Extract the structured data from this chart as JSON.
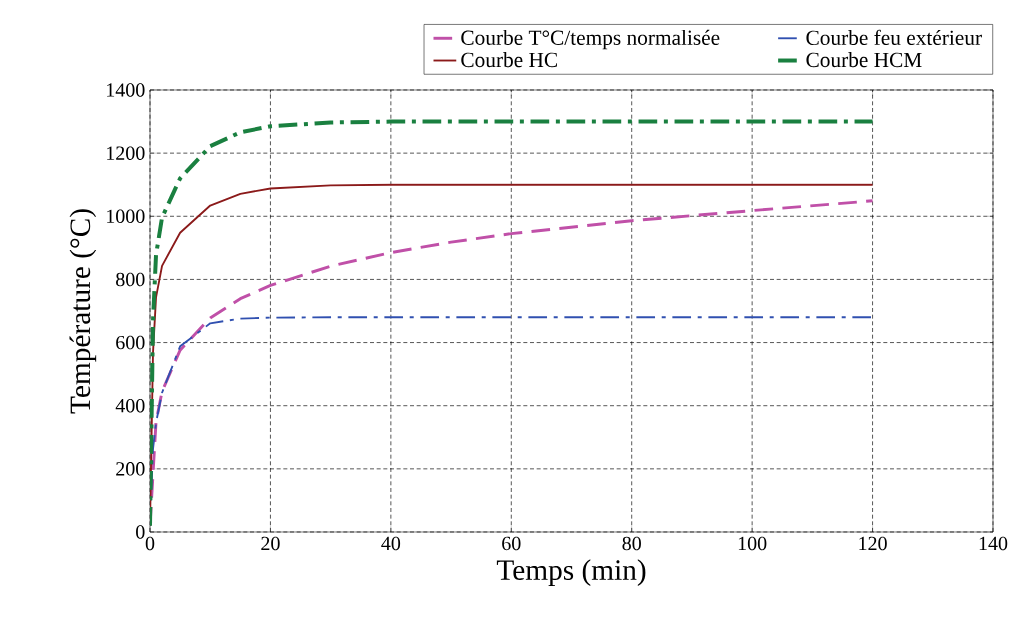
{
  "chart_data": {
    "type": "line",
    "xlabel": "Temps (min)",
    "ylabel": "Température (°C)",
    "xlim": [
      0,
      140
    ],
    "ylim": [
      0,
      1400
    ],
    "xticks": [
      0,
      20,
      40,
      60,
      80,
      100,
      120,
      140
    ],
    "yticks": [
      0,
      200,
      400,
      600,
      800,
      1000,
      1200,
      1400
    ],
    "grid": true,
    "legend": "top",
    "marker": "none",
    "series": [
      {
        "name": "Courbe T°C/temps normalisée",
        "color": "#c050a8",
        "line_style": "dashed",
        "x": [
          0,
          1,
          2,
          5,
          10,
          15,
          20,
          30,
          40,
          50,
          60,
          80,
          100,
          120
        ],
        "values": [
          20,
          349,
          445,
          576,
          678,
          739,
          781,
          842,
          885,
          918,
          945,
          986,
          1018,
          1049
        ]
      },
      {
        "name": "Courbe feu extérieur",
        "color": "#3050b0",
        "line_style": "dashdot",
        "x": [
          0,
          0.5,
          1,
          2,
          5,
          10,
          15,
          20,
          30,
          60,
          90,
          120
        ],
        "values": [
          20,
          263,
          346,
          441,
          588,
          661,
          676,
          679,
          680,
          680,
          680,
          680
        ]
      },
      {
        "name": "Courbe HC",
        "color": "#8b1a1a",
        "line_style": "solid",
        "x": [
          0,
          0.5,
          1,
          2,
          5,
          10,
          15,
          20,
          30,
          40,
          60,
          90,
          120
        ],
        "values": [
          20,
          569,
          743,
          843,
          948,
          1034,
          1071,
          1088,
          1098,
          1100,
          1100,
          1100,
          1100
        ]
      },
      {
        "name": "Courbe HCM",
        "color": "#1a8040",
        "line_style": "dashdot",
        "x": [
          0,
          0.5,
          1,
          2,
          5,
          10,
          15,
          20,
          30,
          40,
          60,
          90,
          120
        ],
        "values": [
          20,
          670,
          878,
          996,
          1120,
          1222,
          1266,
          1285,
          1297,
          1300,
          1300,
          1300,
          1300
        ]
      }
    ]
  }
}
